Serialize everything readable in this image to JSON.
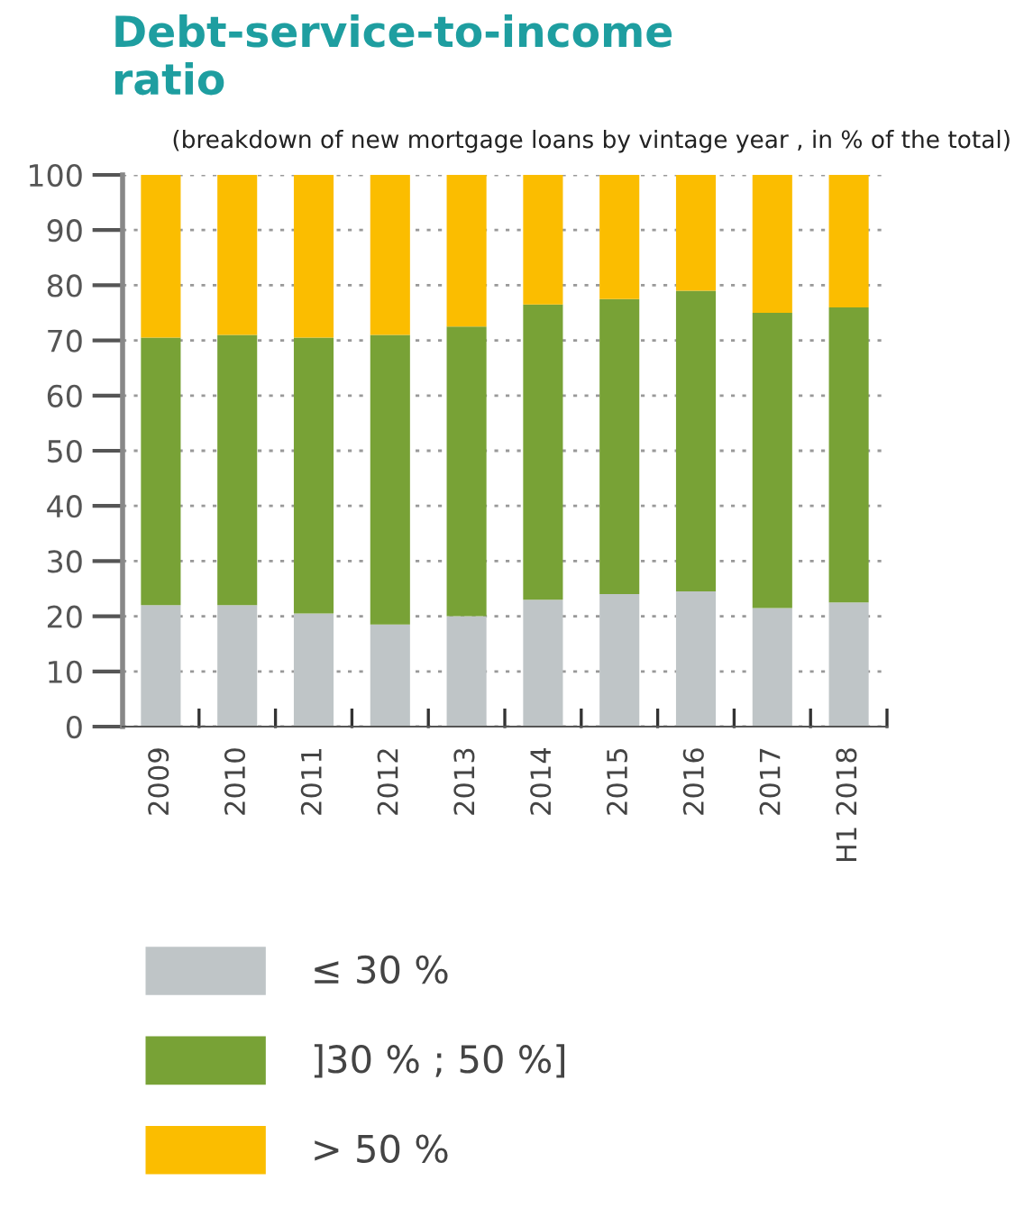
{
  "chart_data": {
    "type": "bar",
    "stacked": true,
    "title": "Debt-service-to-income\nratio",
    "subtitle": "(breakdown of new mortgage loans by vintage year , in % of the total)",
    "categories": [
      "2009",
      "2010",
      "2011",
      "2012",
      "2013",
      "2014",
      "2015",
      "2016",
      "2017",
      "H1 2018"
    ],
    "series": [
      {
        "name": "≤ 30 %",
        "color": "#bfc5c7",
        "values": [
          22,
          22,
          20.5,
          18.5,
          20,
          23,
          24,
          24.5,
          21.5,
          22.5
        ]
      },
      {
        "name": "]30 % ; 50 %]",
        "color": "#78a236",
        "values": [
          48.5,
          49,
          50,
          52.5,
          52.5,
          53.5,
          53.5,
          54.5,
          53.5,
          53.5
        ]
      },
      {
        "name": "> 50 %",
        "color": "#fbbd00",
        "values": [
          29.5,
          29,
          29.5,
          29,
          27.5,
          23.5,
          22.5,
          21,
          25,
          24
        ]
      }
    ],
    "ylim": [
      0,
      100
    ],
    "yticks": [
      0,
      10,
      20,
      30,
      40,
      50,
      60,
      70,
      80,
      90,
      100
    ],
    "grid": "y",
    "legend": "bottom"
  }
}
